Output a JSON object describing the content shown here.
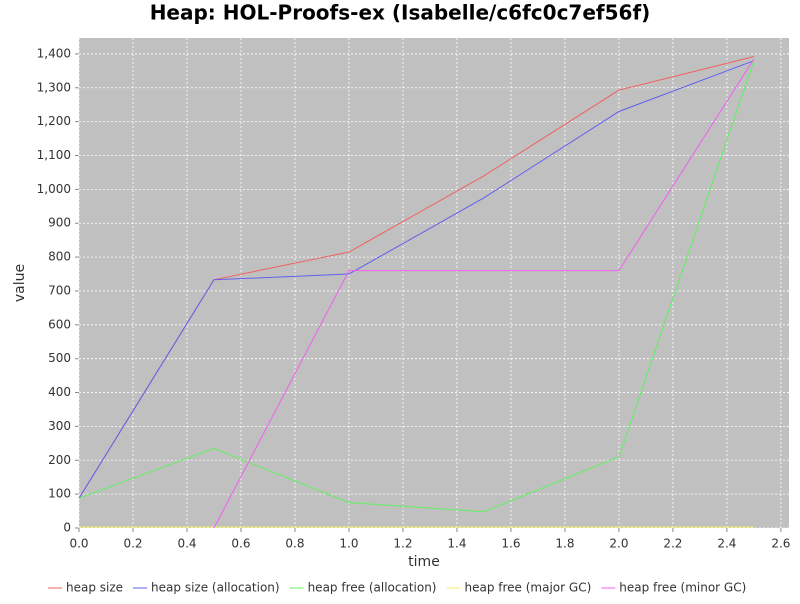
{
  "chart_data": {
    "type": "line",
    "title": "Heap: HOL-Proofs-ex (Isabelle/c6fc0c7ef56f)",
    "x_label": "time",
    "y_label": "value",
    "x": [
      0.0,
      0.5,
      1.0,
      1.5,
      2.0,
      2.5
    ],
    "series": [
      {
        "name": "heap size",
        "color": "#f06060",
        "values": [
          88,
          733,
          815,
          1040,
          1293,
          1392
        ]
      },
      {
        "name": "heap size (allocation)",
        "color": "#6060f0",
        "values": [
          88,
          733,
          750,
          975,
          1230,
          1380
        ]
      },
      {
        "name": "heap free (allocation)",
        "color": "#60f060",
        "values": [
          88,
          235,
          75,
          48,
          210,
          1380
        ]
      },
      {
        "name": "heap free (major GC)",
        "color": "#f0f060",
        "values": [
          3,
          3,
          3,
          3,
          3,
          3
        ]
      },
      {
        "name": "heap free (minor GC)",
        "color": "#f060f0",
        "values": [
          null,
          0,
          760,
          760,
          760,
          1385
        ]
      }
    ],
    "xlim": [
      0,
      2.63
    ],
    "ylim": [
      0,
      1447
    ],
    "xticks": [
      {
        "value": 0,
        "label": "0.0"
      },
      {
        "value": 0.2,
        "label": "0.2"
      },
      {
        "value": 0.4,
        "label": "0.4"
      },
      {
        "value": 0.6,
        "label": "0.6"
      },
      {
        "value": 0.8,
        "label": "0.8"
      },
      {
        "value": 1,
        "label": "1.0"
      },
      {
        "value": 1.2,
        "label": "1.2"
      },
      {
        "value": 1.4,
        "label": "1.4"
      },
      {
        "value": 1.6,
        "label": "1.6"
      },
      {
        "value": 1.8,
        "label": "1.8"
      },
      {
        "value": 2,
        "label": "2.0"
      },
      {
        "value": 2.2,
        "label": "2.2"
      },
      {
        "value": 2.4,
        "label": "2.4"
      },
      {
        "value": 2.6,
        "label": "2.6"
      }
    ],
    "yticks": [
      0,
      100,
      200,
      300,
      400,
      500,
      600,
      700,
      800,
      900,
      {
        "value": 1000,
        "label": "1,000"
      },
      {
        "value": 1100,
        "label": "1,100"
      },
      {
        "value": 1200,
        "label": "1,200"
      },
      {
        "value": 1300,
        "label": "1,300"
      },
      {
        "value": 1400,
        "label": "1,400"
      }
    ],
    "grid": true
  }
}
